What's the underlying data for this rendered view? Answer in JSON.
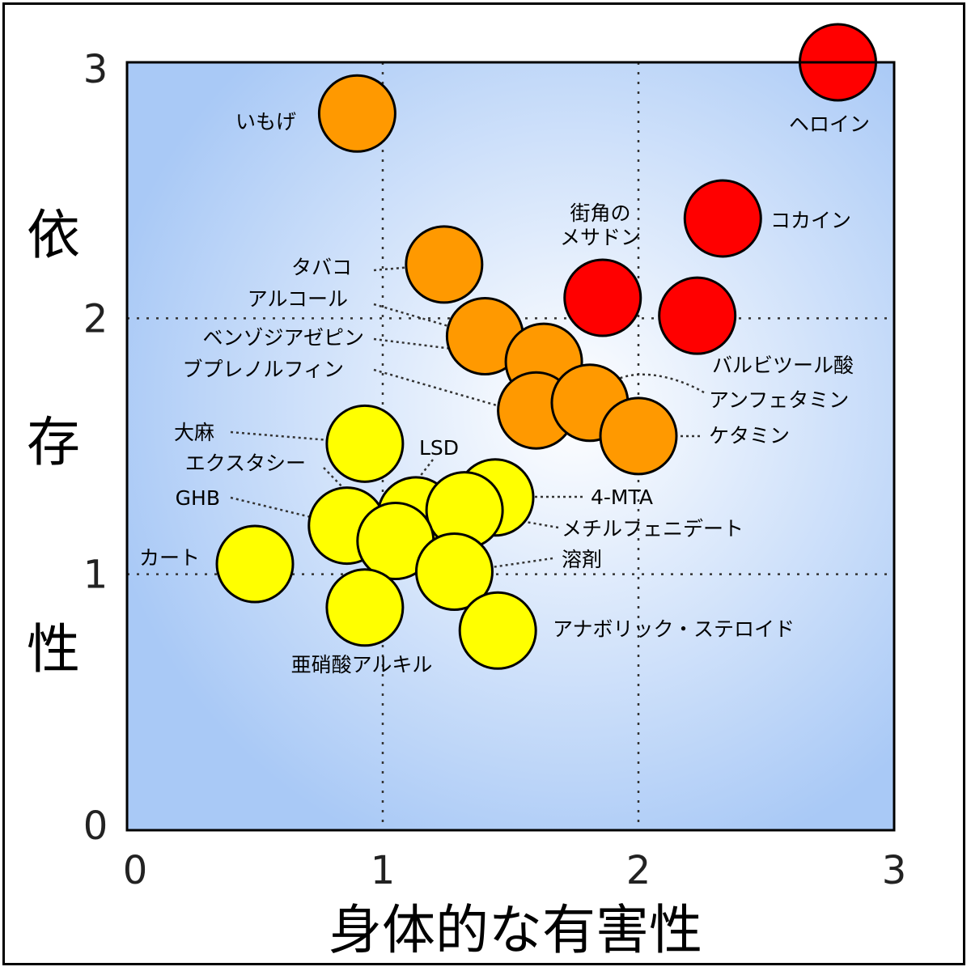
{
  "chart_data": {
    "type": "scatter",
    "xlabel": "身体的な有害性",
    "ylabel": "依存性",
    "xlim": [
      0,
      3
    ],
    "ylim": [
      0,
      3
    ],
    "x_ticks": [
      "0",
      "1",
      "2",
      "3"
    ],
    "y_ticks": [
      "0",
      "1",
      "2",
      "3"
    ],
    "grid_lines_at": [
      1,
      2
    ],
    "background": "radial gradient, white center to light blue",
    "points": [
      {
        "label": "ヘロイン",
        "x": 2.78,
        "y": 3.0,
        "color": "#ff0000"
      },
      {
        "label": "コカイン",
        "x": 2.33,
        "y": 2.39,
        "color": "#ff0000"
      },
      {
        "label": "街角の\nメサドン",
        "x": 1.86,
        "y": 2.08,
        "color": "#ff0000"
      },
      {
        "label": "バルビツール酸",
        "x": 2.23,
        "y": 2.01,
        "color": "#ff0000"
      },
      {
        "label": "いもげ",
        "x": 0.9,
        "y": 2.8,
        "color": "#ff9900"
      },
      {
        "label": "タバコ",
        "x": 1.24,
        "y": 2.21,
        "color": "#ff9900"
      },
      {
        "label": "アルコール",
        "x": 1.4,
        "y": 1.93,
        "color": "#ff9900"
      },
      {
        "label": "ベンゾジアゼピン",
        "x": 1.63,
        "y": 1.83,
        "color": "#ff9900"
      },
      {
        "label": "ブプレノルフィン",
        "x": 1.6,
        "y": 1.64,
        "color": "#ff9900"
      },
      {
        "label": "アンフェタミン",
        "x": 1.81,
        "y": 1.67,
        "color": "#ff9900"
      },
      {
        "label": "ケタミン",
        "x": 2.0,
        "y": 1.54,
        "color": "#ff9900"
      },
      {
        "label": "大麻",
        "x": 0.93,
        "y": 1.51,
        "color": "#ffff00"
      },
      {
        "label": "LSD",
        "x": 1.13,
        "y": 1.23,
        "color": "#ffff00"
      },
      {
        "label": "4-MTA",
        "x": 1.44,
        "y": 1.3,
        "color": "#ffff00"
      },
      {
        "label": "メチルフェニデート",
        "x": 1.32,
        "y": 1.25,
        "color": "#ffff00"
      },
      {
        "label": "GHB",
        "x": 0.86,
        "y": 1.19,
        "color": "#ffff00"
      },
      {
        "label": "エクスタシー",
        "x": 1.05,
        "y": 1.13,
        "color": "#ffff00"
      },
      {
        "label": "溶剤",
        "x": 1.28,
        "y": 1.01,
        "color": "#ffff00"
      },
      {
        "label": "カート",
        "x": 0.5,
        "y": 1.04,
        "color": "#ffff00"
      },
      {
        "label": "亜硝酸アルキル",
        "x": 0.93,
        "y": 0.87,
        "color": "#ffff00"
      },
      {
        "label": "アナボリック・ステロイド",
        "x": 1.45,
        "y": 0.78,
        "color": "#ffff00"
      }
    ]
  }
}
